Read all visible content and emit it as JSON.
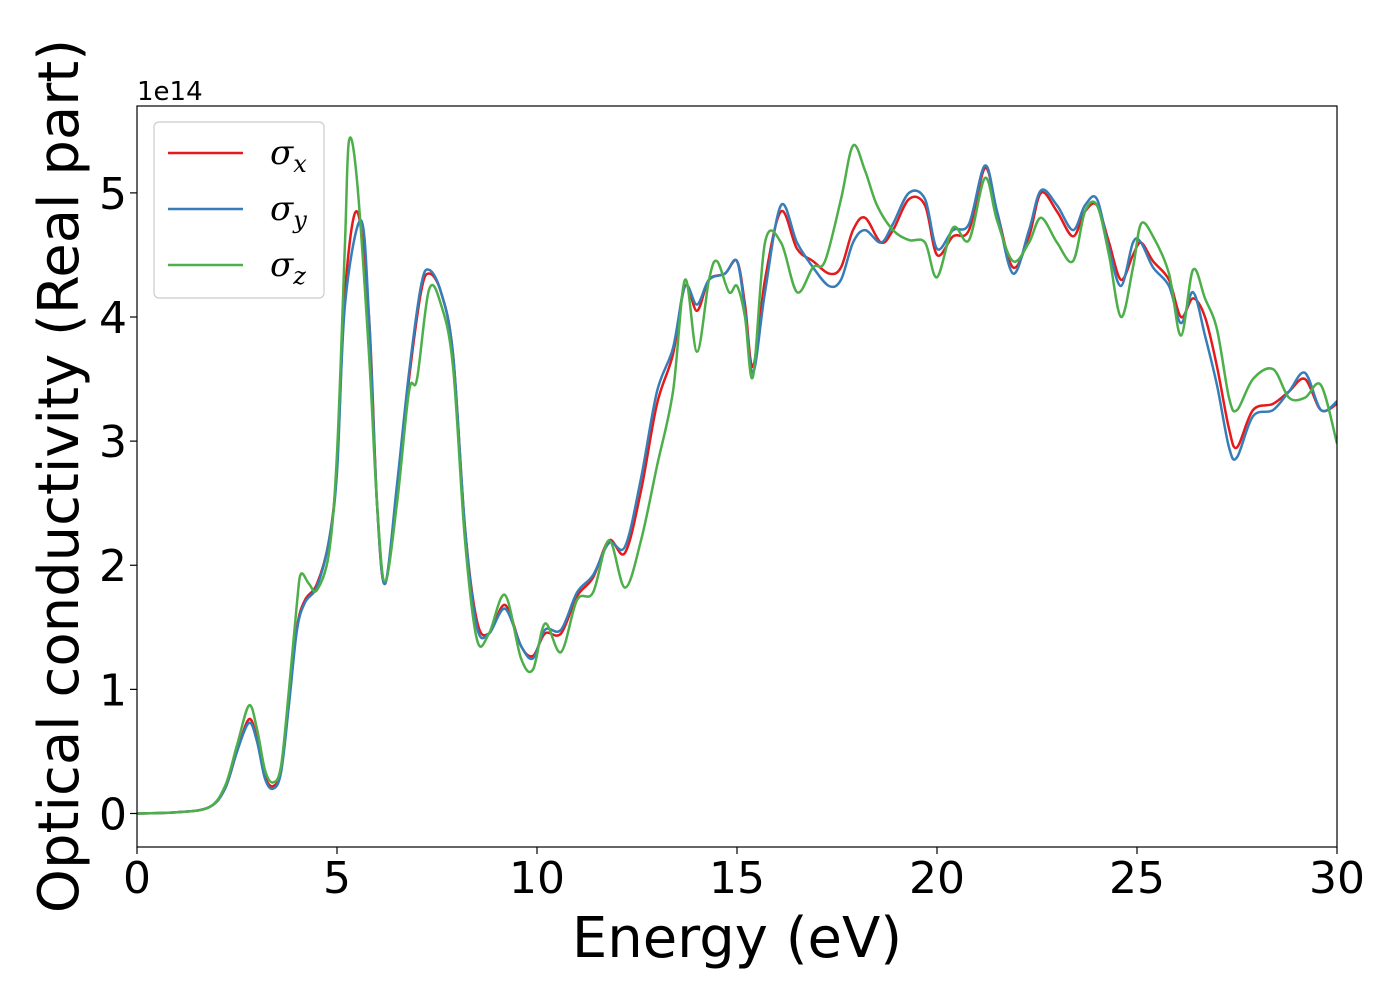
{
  "chart_data": {
    "type": "line",
    "xlabel": "Energy (eV)",
    "ylabel": "Optical conductivity (Real part)",
    "y_offset_label": "1e14",
    "xlim": [
      0,
      30
    ],
    "ylim": [
      -0.27,
      5.7
    ],
    "x_ticks": [
      0,
      5,
      10,
      15,
      20,
      25,
      30
    ],
    "x_tick_labels": [
      "0",
      "5",
      "10",
      "15",
      "20",
      "25",
      "30"
    ],
    "y_ticks": [
      0,
      1,
      2,
      3,
      4,
      5
    ],
    "y_tick_labels": [
      "0",
      "1",
      "2",
      "3",
      "4",
      "5"
    ],
    "grid": false,
    "legend_position": "top-left",
    "series": [
      {
        "name": "σx",
        "legend_base": "σ",
        "legend_sub": "x",
        "color": "#e41a1c",
        "points": [
          [
            0,
            0
          ],
          [
            1,
            0.01
          ],
          [
            1.8,
            0.05
          ],
          [
            2.2,
            0.2
          ],
          [
            2.5,
            0.5
          ],
          [
            2.8,
            0.76
          ],
          [
            3.0,
            0.6
          ],
          [
            3.2,
            0.3
          ],
          [
            3.4,
            0.22
          ],
          [
            3.6,
            0.35
          ],
          [
            3.8,
            0.9
          ],
          [
            4.0,
            1.5
          ],
          [
            4.2,
            1.72
          ],
          [
            4.5,
            1.85
          ],
          [
            4.8,
            2.2
          ],
          [
            5.0,
            2.8
          ],
          [
            5.2,
            4.2
          ],
          [
            5.5,
            4.85
          ],
          [
            5.8,
            4.0
          ],
          [
            6.0,
            2.5
          ],
          [
            6.2,
            1.85
          ],
          [
            6.5,
            2.6
          ],
          [
            6.8,
            3.5
          ],
          [
            7.1,
            4.2
          ],
          [
            7.3,
            4.35
          ],
          [
            7.6,
            4.2
          ],
          [
            7.9,
            3.7
          ],
          [
            8.2,
            2.3
          ],
          [
            8.5,
            1.55
          ],
          [
            8.8,
            1.45
          ],
          [
            9.2,
            1.68
          ],
          [
            9.6,
            1.35
          ],
          [
            9.9,
            1.27
          ],
          [
            10.2,
            1.45
          ],
          [
            10.6,
            1.45
          ],
          [
            11.0,
            1.75
          ],
          [
            11.4,
            1.9
          ],
          [
            11.8,
            2.2
          ],
          [
            12.2,
            2.1
          ],
          [
            12.6,
            2.6
          ],
          [
            13.0,
            3.3
          ],
          [
            13.4,
            3.7
          ],
          [
            13.7,
            4.25
          ],
          [
            14.0,
            4.05
          ],
          [
            14.3,
            4.3
          ],
          [
            14.7,
            4.35
          ],
          [
            15.0,
            4.45
          ],
          [
            15.2,
            4.1
          ],
          [
            15.4,
            3.6
          ],
          [
            15.7,
            4.3
          ],
          [
            16.1,
            4.85
          ],
          [
            16.5,
            4.55
          ],
          [
            16.9,
            4.45
          ],
          [
            17.3,
            4.35
          ],
          [
            17.6,
            4.4
          ],
          [
            17.9,
            4.7
          ],
          [
            18.2,
            4.8
          ],
          [
            18.6,
            4.6
          ],
          [
            18.9,
            4.7
          ],
          [
            19.3,
            4.95
          ],
          [
            19.7,
            4.9
          ],
          [
            20.0,
            4.5
          ],
          [
            20.4,
            4.65
          ],
          [
            20.8,
            4.7
          ],
          [
            21.2,
            5.2
          ],
          [
            21.5,
            4.85
          ],
          [
            21.9,
            4.4
          ],
          [
            22.3,
            4.65
          ],
          [
            22.6,
            5.0
          ],
          [
            23.0,
            4.85
          ],
          [
            23.4,
            4.65
          ],
          [
            23.7,
            4.85
          ],
          [
            24.0,
            4.9
          ],
          [
            24.3,
            4.6
          ],
          [
            24.6,
            4.3
          ],
          [
            24.9,
            4.5
          ],
          [
            25.1,
            4.6
          ],
          [
            25.4,
            4.45
          ],
          [
            25.8,
            4.3
          ],
          [
            26.1,
            4.0
          ],
          [
            26.4,
            4.15
          ],
          [
            26.7,
            4.0
          ],
          [
            27.0,
            3.6
          ],
          [
            27.3,
            3.1
          ],
          [
            27.5,
            2.95
          ],
          [
            27.9,
            3.25
          ],
          [
            28.4,
            3.3
          ],
          [
            28.8,
            3.4
          ],
          [
            29.2,
            3.5
          ],
          [
            29.6,
            3.25
          ],
          [
            30.0,
            3.3
          ]
        ]
      },
      {
        "name": "σy",
        "legend_base": "σ",
        "legend_sub": "y",
        "color": "#377eb8",
        "points": [
          [
            0,
            0
          ],
          [
            1,
            0.01
          ],
          [
            1.8,
            0.05
          ],
          [
            2.2,
            0.2
          ],
          [
            2.5,
            0.5
          ],
          [
            2.8,
            0.73
          ],
          [
            3.0,
            0.58
          ],
          [
            3.2,
            0.28
          ],
          [
            3.4,
            0.2
          ],
          [
            3.6,
            0.33
          ],
          [
            3.8,
            0.88
          ],
          [
            4.0,
            1.48
          ],
          [
            4.2,
            1.7
          ],
          [
            4.5,
            1.83
          ],
          [
            4.8,
            2.2
          ],
          [
            5.0,
            2.75
          ],
          [
            5.2,
            4.1
          ],
          [
            5.6,
            4.78
          ],
          [
            5.8,
            4.0
          ],
          [
            6.0,
            2.5
          ],
          [
            6.2,
            1.85
          ],
          [
            6.5,
            2.65
          ],
          [
            6.8,
            3.55
          ],
          [
            7.1,
            4.25
          ],
          [
            7.3,
            4.38
          ],
          [
            7.6,
            4.2
          ],
          [
            7.9,
            3.7
          ],
          [
            8.2,
            2.3
          ],
          [
            8.5,
            1.5
          ],
          [
            8.8,
            1.45
          ],
          [
            9.2,
            1.65
          ],
          [
            9.6,
            1.35
          ],
          [
            9.9,
            1.25
          ],
          [
            10.2,
            1.48
          ],
          [
            10.6,
            1.48
          ],
          [
            11.0,
            1.78
          ],
          [
            11.4,
            1.92
          ],
          [
            11.8,
            2.18
          ],
          [
            12.2,
            2.15
          ],
          [
            12.6,
            2.7
          ],
          [
            13.0,
            3.4
          ],
          [
            13.4,
            3.75
          ],
          [
            13.7,
            4.25
          ],
          [
            14.0,
            4.1
          ],
          [
            14.3,
            4.3
          ],
          [
            14.7,
            4.35
          ],
          [
            15.0,
            4.45
          ],
          [
            15.2,
            4.05
          ],
          [
            15.4,
            3.55
          ],
          [
            15.7,
            4.2
          ],
          [
            16.1,
            4.9
          ],
          [
            16.5,
            4.6
          ],
          [
            16.9,
            4.4
          ],
          [
            17.3,
            4.25
          ],
          [
            17.6,
            4.3
          ],
          [
            17.9,
            4.6
          ],
          [
            18.2,
            4.7
          ],
          [
            18.6,
            4.6
          ],
          [
            18.9,
            4.75
          ],
          [
            19.3,
            5.0
          ],
          [
            19.7,
            4.95
          ],
          [
            20.0,
            4.55
          ],
          [
            20.4,
            4.7
          ],
          [
            20.8,
            4.75
          ],
          [
            21.2,
            5.22
          ],
          [
            21.5,
            4.85
          ],
          [
            21.9,
            4.35
          ],
          [
            22.3,
            4.7
          ],
          [
            22.6,
            5.02
          ],
          [
            23.0,
            4.9
          ],
          [
            23.4,
            4.7
          ],
          [
            23.7,
            4.9
          ],
          [
            24.0,
            4.95
          ],
          [
            24.3,
            4.55
          ],
          [
            24.6,
            4.25
          ],
          [
            24.9,
            4.6
          ],
          [
            25.1,
            4.6
          ],
          [
            25.4,
            4.4
          ],
          [
            25.8,
            4.25
          ],
          [
            26.1,
            3.95
          ],
          [
            26.4,
            4.2
          ],
          [
            26.7,
            3.85
          ],
          [
            27.0,
            3.45
          ],
          [
            27.3,
            2.95
          ],
          [
            27.5,
            2.87
          ],
          [
            27.9,
            3.2
          ],
          [
            28.4,
            3.25
          ],
          [
            28.8,
            3.4
          ],
          [
            29.2,
            3.55
          ],
          [
            29.6,
            3.25
          ],
          [
            30.0,
            3.32
          ]
        ]
      },
      {
        "name": "σz",
        "legend_base": "σ",
        "legend_sub": "z",
        "color": "#4daf4a",
        "points": [
          [
            0,
            0
          ],
          [
            1,
            0.01
          ],
          [
            1.8,
            0.05
          ],
          [
            2.2,
            0.22
          ],
          [
            2.5,
            0.55
          ],
          [
            2.8,
            0.87
          ],
          [
            3.0,
            0.68
          ],
          [
            3.2,
            0.35
          ],
          [
            3.4,
            0.25
          ],
          [
            3.6,
            0.38
          ],
          [
            3.8,
            1.0
          ],
          [
            4.0,
            1.7
          ],
          [
            4.1,
            1.93
          ],
          [
            4.3,
            1.85
          ],
          [
            4.5,
            1.8
          ],
          [
            4.8,
            2.1
          ],
          [
            5.0,
            2.9
          ],
          [
            5.2,
            4.6
          ],
          [
            5.3,
            5.42
          ],
          [
            5.5,
            5.1
          ],
          [
            5.8,
            3.7
          ],
          [
            6.0,
            2.5
          ],
          [
            6.2,
            1.87
          ],
          [
            6.5,
            2.5
          ],
          [
            6.8,
            3.4
          ],
          [
            7.0,
            3.5
          ],
          [
            7.3,
            4.22
          ],
          [
            7.6,
            4.1
          ],
          [
            7.9,
            3.6
          ],
          [
            8.2,
            2.2
          ],
          [
            8.5,
            1.4
          ],
          [
            8.8,
            1.45
          ],
          [
            9.2,
            1.76
          ],
          [
            9.6,
            1.25
          ],
          [
            9.9,
            1.16
          ],
          [
            10.2,
            1.53
          ],
          [
            10.6,
            1.3
          ],
          [
            11.0,
            1.72
          ],
          [
            11.4,
            1.78
          ],
          [
            11.8,
            2.2
          ],
          [
            12.2,
            1.82
          ],
          [
            12.6,
            2.2
          ],
          [
            13.0,
            2.8
          ],
          [
            13.4,
            3.4
          ],
          [
            13.7,
            4.3
          ],
          [
            14.0,
            3.72
          ],
          [
            14.3,
            4.3
          ],
          [
            14.5,
            4.45
          ],
          [
            14.8,
            4.2
          ],
          [
            15.0,
            4.25
          ],
          [
            15.2,
            4.0
          ],
          [
            15.4,
            3.52
          ],
          [
            15.7,
            4.6
          ],
          [
            16.1,
            4.6
          ],
          [
            16.5,
            4.2
          ],
          [
            16.9,
            4.4
          ],
          [
            17.2,
            4.45
          ],
          [
            17.6,
            4.95
          ],
          [
            17.9,
            5.38
          ],
          [
            18.2,
            5.18
          ],
          [
            18.5,
            4.9
          ],
          [
            18.9,
            4.7
          ],
          [
            19.3,
            4.62
          ],
          [
            19.7,
            4.6
          ],
          [
            20.0,
            4.32
          ],
          [
            20.4,
            4.72
          ],
          [
            20.8,
            4.62
          ],
          [
            21.2,
            5.12
          ],
          [
            21.5,
            4.78
          ],
          [
            21.9,
            4.45
          ],
          [
            22.3,
            4.6
          ],
          [
            22.6,
            4.8
          ],
          [
            23.0,
            4.6
          ],
          [
            23.4,
            4.45
          ],
          [
            23.7,
            4.85
          ],
          [
            24.0,
            4.9
          ],
          [
            24.3,
            4.5
          ],
          [
            24.6,
            4.0
          ],
          [
            24.9,
            4.4
          ],
          [
            25.1,
            4.75
          ],
          [
            25.4,
            4.65
          ],
          [
            25.8,
            4.35
          ],
          [
            26.1,
            3.85
          ],
          [
            26.4,
            4.38
          ],
          [
            26.7,
            4.15
          ],
          [
            27.0,
            3.9
          ],
          [
            27.3,
            3.35
          ],
          [
            27.5,
            3.25
          ],
          [
            27.9,
            3.5
          ],
          [
            28.4,
            3.58
          ],
          [
            28.8,
            3.35
          ],
          [
            29.2,
            3.35
          ],
          [
            29.6,
            3.45
          ],
          [
            30.0,
            2.98
          ]
        ]
      }
    ]
  }
}
